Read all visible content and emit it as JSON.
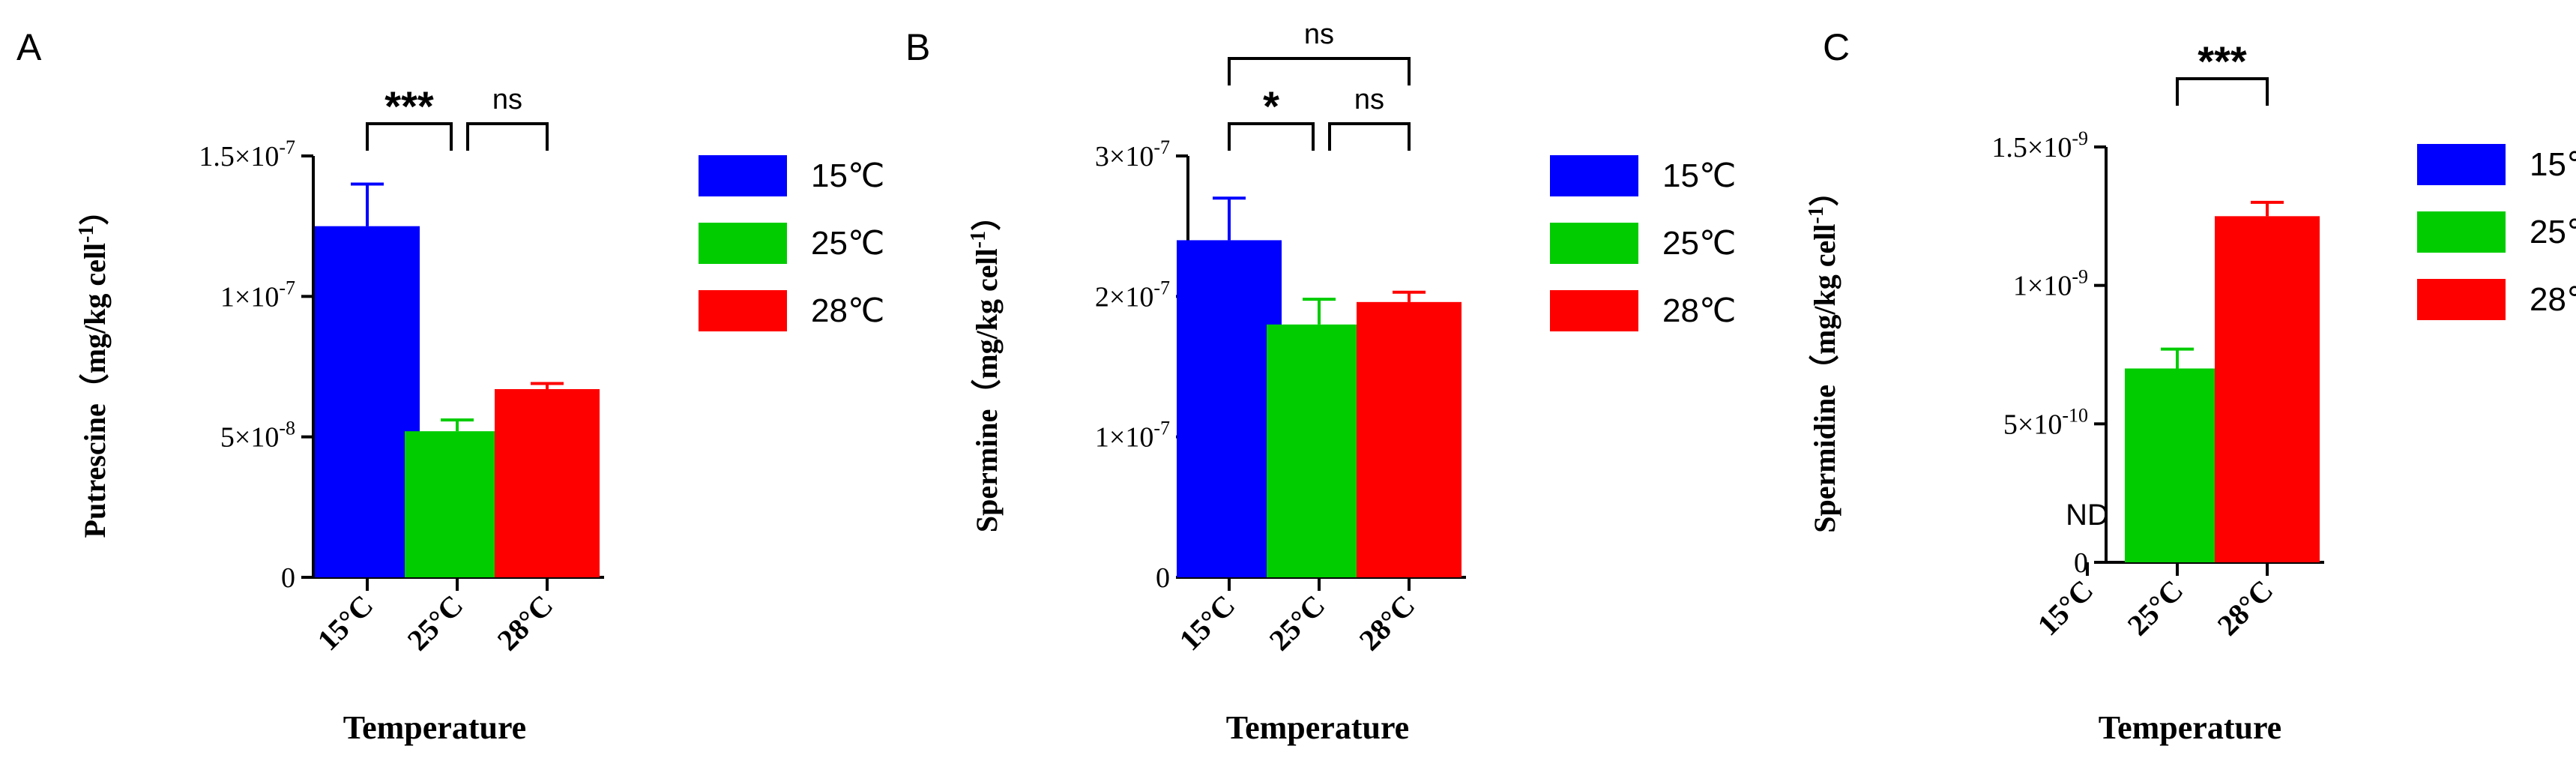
{
  "chart_data": [
    {
      "panel": "A",
      "type": "bar",
      "categories": [
        "15°C",
        "25°C",
        "28°C"
      ],
      "values": [
        1.25e-07,
        5.2e-08,
        6.7e-08
      ],
      "errors": [
        1.5e-08,
        4e-09,
        2e-09
      ],
      "ylabel_main": "Putrescine（mg/kg cell",
      "ylabel_sup": "-1",
      "ylabel_close": "）",
      "xlabel": "Temperature",
      "ylim": [
        0,
        1.5e-07
      ],
      "yticks": [
        {
          "value": 0,
          "label": "0",
          "sup": ""
        },
        {
          "value": 5e-08,
          "label": "5×10",
          "sup": "-8"
        },
        {
          "value": 1e-07,
          "label": "1×10",
          "sup": "-7"
        },
        {
          "value": 1.5e-07,
          "label": "1.5×10",
          "sup": "-7"
        }
      ],
      "colors": [
        "#0000ff",
        "#00cc00",
        "#ff0000"
      ],
      "nd": [],
      "significance": [
        {
          "from": 0,
          "to": 1,
          "label": "***",
          "level": 1
        },
        {
          "from": 1,
          "to": 2,
          "label": "ns",
          "level": 1
        }
      ]
    },
    {
      "panel": "B",
      "type": "bar",
      "categories": [
        "15°C",
        "25°C",
        "28°C"
      ],
      "values": [
        2.4e-07,
        1.8e-07,
        1.96e-07
      ],
      "errors": [
        3e-08,
        1.8e-08,
        7e-09
      ],
      "ylabel_main": "Spermine（mg/kg cell",
      "ylabel_sup": "-1",
      "ylabel_close": "）",
      "xlabel": "Temperature",
      "ylim": [
        0,
        3e-07
      ],
      "yticks": [
        {
          "value": 0,
          "label": "0",
          "sup": ""
        },
        {
          "value": 1e-07,
          "label": "1×10",
          "sup": "-7"
        },
        {
          "value": 2e-07,
          "label": "2×10",
          "sup": "-7"
        },
        {
          "value": 3e-07,
          "label": "3×10",
          "sup": "-7"
        }
      ],
      "colors": [
        "#0000ff",
        "#00cc00",
        "#ff0000"
      ],
      "nd": [],
      "significance": [
        {
          "from": 0,
          "to": 1,
          "label": "*",
          "level": 1
        },
        {
          "from": 1,
          "to": 2,
          "label": "ns",
          "level": 1
        },
        {
          "from": 0,
          "to": 2,
          "label": "ns",
          "level": 2
        }
      ]
    },
    {
      "panel": "C",
      "type": "bar",
      "categories": [
        "15°C",
        "25°C",
        "28°C"
      ],
      "values": [
        0,
        7e-10,
        1.25e-09
      ],
      "errors": [
        0,
        7e-11,
        5e-11
      ],
      "ylabel_main": "Spermidine（mg/kg cell",
      "ylabel_sup": "-1",
      "ylabel_close": "）",
      "xlabel": "Temperature",
      "ylim": [
        0,
        1.5e-09
      ],
      "yticks": [
        {
          "value": 0,
          "label": "0",
          "sup": ""
        },
        {
          "value": 5e-10,
          "label": "5×10",
          "sup": "-10"
        },
        {
          "value": 1e-09,
          "label": "1×10",
          "sup": "-9"
        },
        {
          "value": 1.5e-09,
          "label": "1.5×10",
          "sup": "-9"
        }
      ],
      "colors": [
        "#0000ff",
        "#00cc00",
        "#ff0000"
      ],
      "nd": [
        {
          "index": 0,
          "label": "ND"
        }
      ],
      "significance": [
        {
          "from": 1,
          "to": 2,
          "label": "***",
          "level": 2
        }
      ]
    }
  ],
  "legend": [
    {
      "label": "15℃",
      "color": "#0000ff"
    },
    {
      "label": "25℃",
      "color": "#00cc00"
    },
    {
      "label": "28℃",
      "color": "#ff0000"
    }
  ]
}
